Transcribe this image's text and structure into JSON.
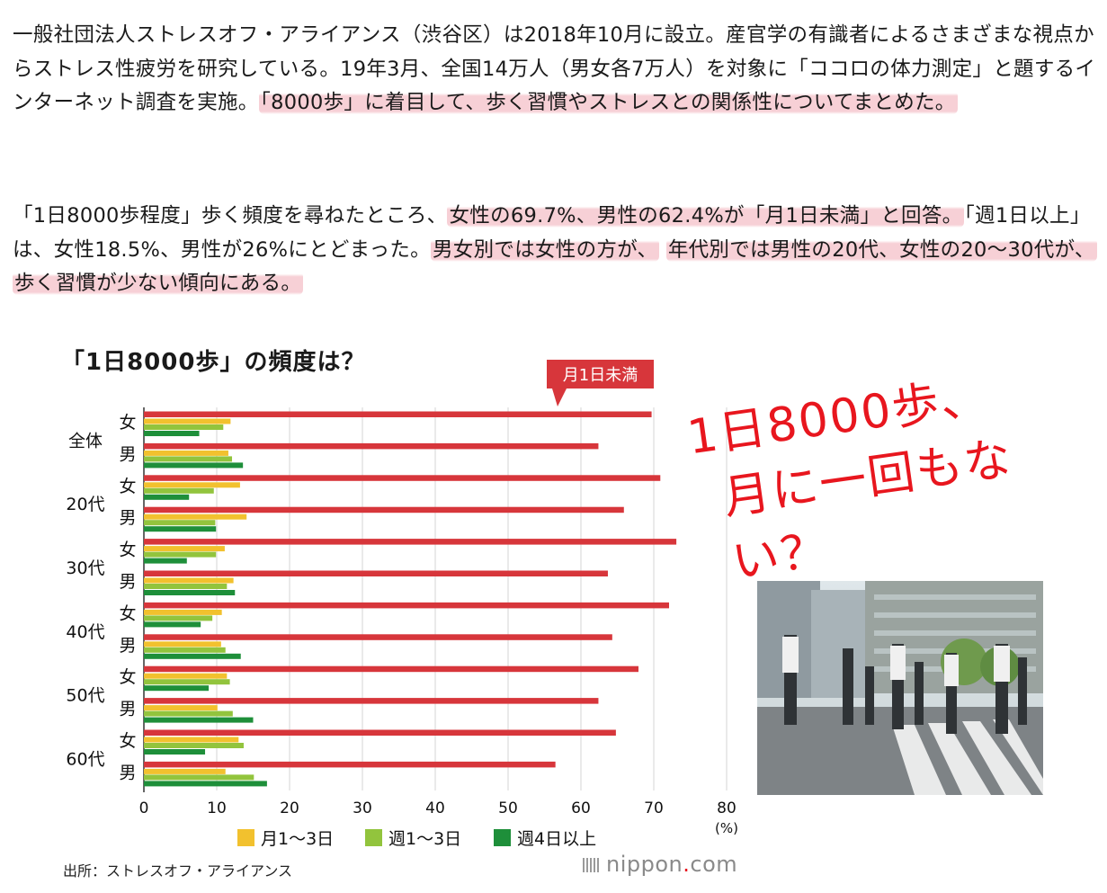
{
  "article": {
    "p1": {
      "plain": "一般社団法人ストレスオフ・アライアンス（渋谷区）は2018年10月に設立。産官学の有識者によるさまざまな視点からストレス性疲労を研究している。19年3月、全国14万人（男女各7万人）を対象に「ココロの体力測定」と題するインターネット調査を実施。",
      "highlight": "「8000歩」に着目して、歩く習慣やストレスとの関係性についてまとめた。"
    },
    "p2": {
      "a": "「1日8000歩程度」歩く頻度を尋ねたところ、",
      "hl1": "女性の69.7%、男性の62.4%が「月1日未満」と回答。",
      "b": "「週1日以上」は、女性18.5%、男性が26%にとどまった。",
      "hl2": "男女別では女性の方が、",
      "c": " ",
      "hl3": "年代別では男性の20代、女性の20～30代が、歩く習慣が少ない傾向にある。"
    }
  },
  "overlay": {
    "line1": "1日8000歩、",
    "line2": "月に一回もない？"
  },
  "source": "出所：ストレスオフ・アライアンス",
  "credit": {
    "name": "nippon",
    "dot": ".",
    "tld": "com"
  },
  "photo": {
    "icon": "pedestrian-crossing-photo"
  },
  "colors": {
    "under1": "#d7363b",
    "m1to3": "#f2c12e",
    "w1to3": "#92c43d",
    "w4plus": "#1e8f3a",
    "callout": "#d7363b",
    "overlay": "#e8161e"
  },
  "chart_data": {
    "type": "bar",
    "orientation": "horizontal",
    "title": "「1日8000歩」の頻度は？",
    "callout": "月1日未満",
    "unit": "(%)",
    "xlim": [
      0,
      80
    ],
    "xticks": [
      0,
      10,
      20,
      30,
      40,
      50,
      60,
      70,
      80
    ],
    "grid": true,
    "legend_position": "bottom",
    "groups": [
      "全体",
      "20代",
      "30代",
      "40代",
      "50代",
      "60代"
    ],
    "genders": [
      "女",
      "男"
    ],
    "series": [
      {
        "name": "月1日未満",
        "values": [
          69.7,
          62.4,
          70.9,
          65.9,
          73.1,
          63.7,
          72.1,
          64.3,
          67.9,
          62.4,
          64.8,
          56.5
        ]
      },
      {
        "name": "月1～3日",
        "values": [
          11.9,
          11.6,
          13.2,
          14.1,
          11.1,
          12.3,
          10.7,
          10.6,
          11.4,
          10.1,
          13.0,
          11.2
        ]
      },
      {
        "name": "週1～3日",
        "values": [
          10.9,
          12.1,
          9.6,
          9.8,
          9.9,
          11.4,
          9.4,
          11.2,
          11.8,
          12.2,
          13.7,
          15.1
        ]
      },
      {
        "name": "週4日以上",
        "values": [
          7.6,
          13.6,
          6.2,
          9.9,
          5.9,
          12.5,
          7.8,
          13.3,
          8.9,
          15.0,
          8.4,
          16.9
        ]
      }
    ]
  }
}
